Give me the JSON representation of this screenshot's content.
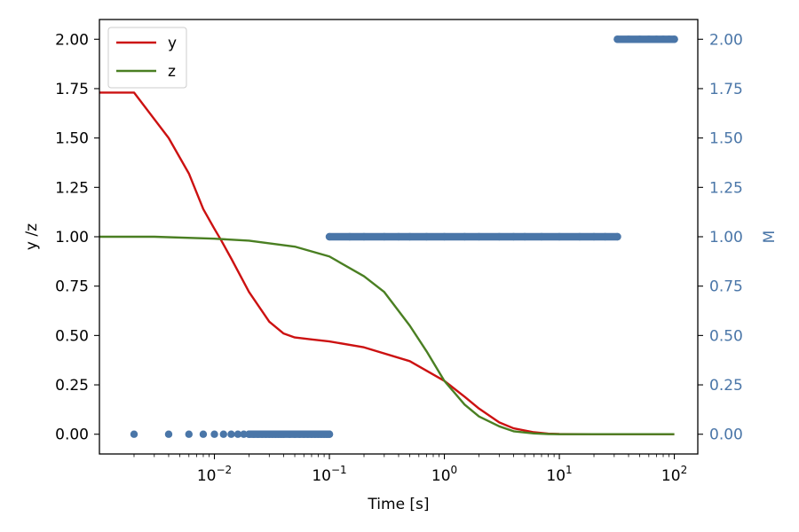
{
  "chart_data": {
    "type": "line",
    "xlabel": "Time [s]",
    "ylabel_left": "y /z",
    "ylabel_right": "M",
    "x_scale": "log",
    "xlim": [
      0.001,
      160
    ],
    "ylim_left": [
      -0.1,
      2.1
    ],
    "ylim_right": [
      -0.1,
      2.1
    ],
    "x_ticks": [
      {
        "value": 0.01,
        "base": "10",
        "exp": "−2"
      },
      {
        "value": 0.1,
        "base": "10",
        "exp": "−1"
      },
      {
        "value": 1,
        "base": "10",
        "exp": "0"
      },
      {
        "value": 10,
        "base": "10",
        "exp": "1"
      },
      {
        "value": 100,
        "base": "10",
        "exp": "2"
      }
    ],
    "y_ticks_left": [
      "0.00",
      "0.25",
      "0.50",
      "0.75",
      "1.00",
      "1.25",
      "1.50",
      "1.75",
      "2.00"
    ],
    "y_ticks_right": [
      "0.00",
      "0.25",
      "0.50",
      "0.75",
      "1.00",
      "1.25",
      "1.50",
      "1.75",
      "2.00"
    ],
    "grid": false,
    "legend": {
      "placement": "top-left",
      "entries": [
        "y",
        "z"
      ]
    },
    "colors": {
      "y": "#cc1111",
      "z": "#4a7f22",
      "M": "#4a76a8"
    },
    "series": [
      {
        "name": "y",
        "color": "#cc1111",
        "x": [
          0.001,
          0.002,
          0.004,
          0.006,
          0.008,
          0.01,
          0.0115,
          0.014,
          0.02,
          0.03,
          0.04,
          0.05,
          0.07,
          0.1,
          0.2,
          0.5,
          1,
          1.5,
          2,
          3,
          4,
          6,
          8,
          10,
          20,
          50,
          100
        ],
        "y": [
          1.73,
          1.73,
          1.5,
          1.32,
          1.14,
          1.04,
          0.98,
          0.89,
          0.72,
          0.57,
          0.51,
          0.49,
          0.48,
          0.47,
          0.44,
          0.37,
          0.27,
          0.19,
          0.13,
          0.06,
          0.03,
          0.01,
          0.003,
          0.001,
          0.0,
          0.0,
          0.0
        ]
      },
      {
        "name": "z",
        "color": "#4a7f22",
        "x": [
          0.001,
          0.003,
          0.01,
          0.02,
          0.05,
          0.1,
          0.2,
          0.3,
          0.5,
          0.7,
          1,
          1.5,
          2,
          3,
          4,
          6,
          8,
          10,
          20,
          50,
          100
        ],
        "y": [
          1.0,
          1.0,
          0.99,
          0.98,
          0.95,
          0.9,
          0.8,
          0.72,
          0.55,
          0.42,
          0.27,
          0.15,
          0.09,
          0.04,
          0.015,
          0.004,
          0.001,
          0.0,
          0.0,
          0.0,
          0.0
        ]
      },
      {
        "name": "M",
        "color": "#4a76a8",
        "style": "scatter",
        "x": [
          0.002,
          0.004,
          0.006,
          0.008,
          0.01,
          0.012,
          0.014,
          0.016,
          0.018,
          0.02,
          0.022,
          0.024,
          0.026,
          0.028,
          0.03,
          0.032,
          0.034,
          0.036,
          0.038,
          0.04,
          0.045,
          0.05,
          0.055,
          0.06,
          0.065,
          0.07,
          0.075,
          0.08,
          0.085,
          0.09,
          0.095,
          0.1,
          0.1,
          0.15,
          0.2,
          0.3,
          0.4,
          0.5,
          0.7,
          1,
          1.5,
          2,
          3,
          4,
          5,
          7,
          10,
          15,
          20,
          25,
          32,
          32,
          40,
          50,
          60,
          70,
          80,
          90,
          100
        ],
        "y": [
          0,
          0,
          0,
          0,
          0,
          0,
          0,
          0,
          0,
          0,
          0,
          0,
          0,
          0,
          0,
          0,
          0,
          0,
          0,
          0,
          0,
          0,
          0,
          0,
          0,
          0,
          0,
          0,
          0,
          0,
          0,
          0,
          1,
          1,
          1,
          1,
          1,
          1,
          1,
          1,
          1,
          1,
          1,
          1,
          1,
          1,
          1,
          1,
          1,
          1,
          1,
          2,
          2,
          2,
          2,
          2,
          2,
          2,
          2
        ]
      }
    ]
  }
}
